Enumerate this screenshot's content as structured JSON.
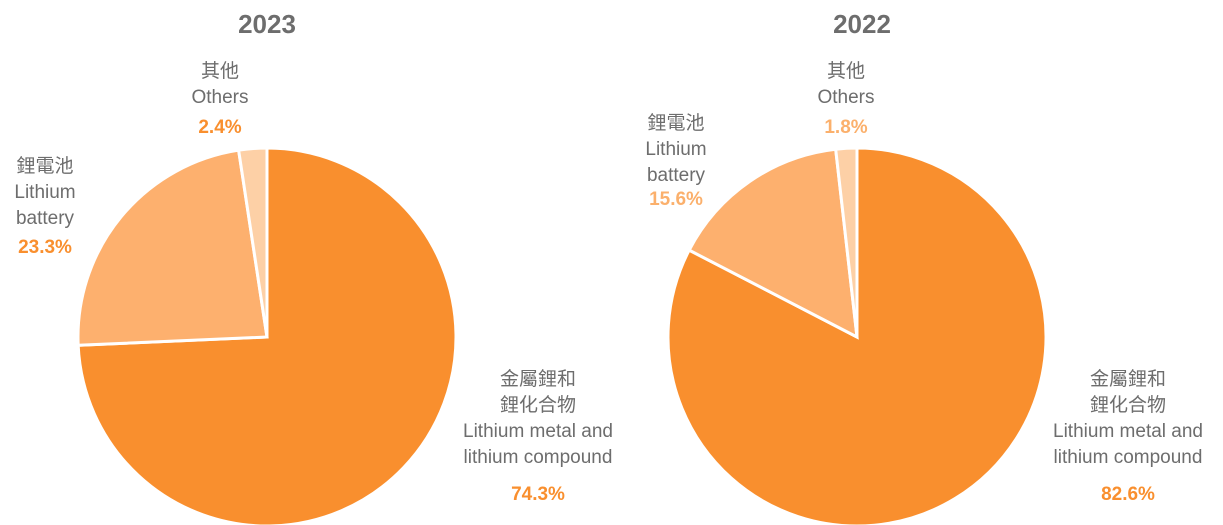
{
  "chart_data": [
    {
      "type": "pie",
      "title": "2023",
      "categories": [
        [
          "金屬鋰和",
          "鋰化合物",
          "Lithium metal and",
          "lithium compound"
        ],
        [
          "鋰電池",
          "Lithium",
          "battery"
        ],
        [
          "其他",
          "Others"
        ]
      ],
      "values": [
        74.3,
        23.3,
        2.4
      ],
      "value_labels": [
        "74.3%",
        "23.3%",
        "2.4%"
      ],
      "colors": [
        "#f98f2e",
        "#fdb06e",
        "#fdd0a6"
      ],
      "value_label_colors": [
        "#f98f2e",
        "#f98f2e",
        "#f98f2e"
      ]
    },
    {
      "type": "pie",
      "title": "2022",
      "categories": [
        [
          "金屬鋰和",
          "鋰化合物",
          "Lithium metal and",
          "lithium compound"
        ],
        [
          "鋰電池",
          "Lithium",
          "battery"
        ],
        [
          "其他",
          "Others"
        ]
      ],
      "values": [
        82.6,
        15.6,
        1.8
      ],
      "value_labels": [
        "82.6%",
        "15.6%",
        "1.8%"
      ],
      "colors": [
        "#f98f2e",
        "#fdb06e",
        "#fdd0a6"
      ],
      "value_label_colors": [
        "#f98f2e",
        "#fbb06c",
        "#fbb06c"
      ]
    }
  ]
}
